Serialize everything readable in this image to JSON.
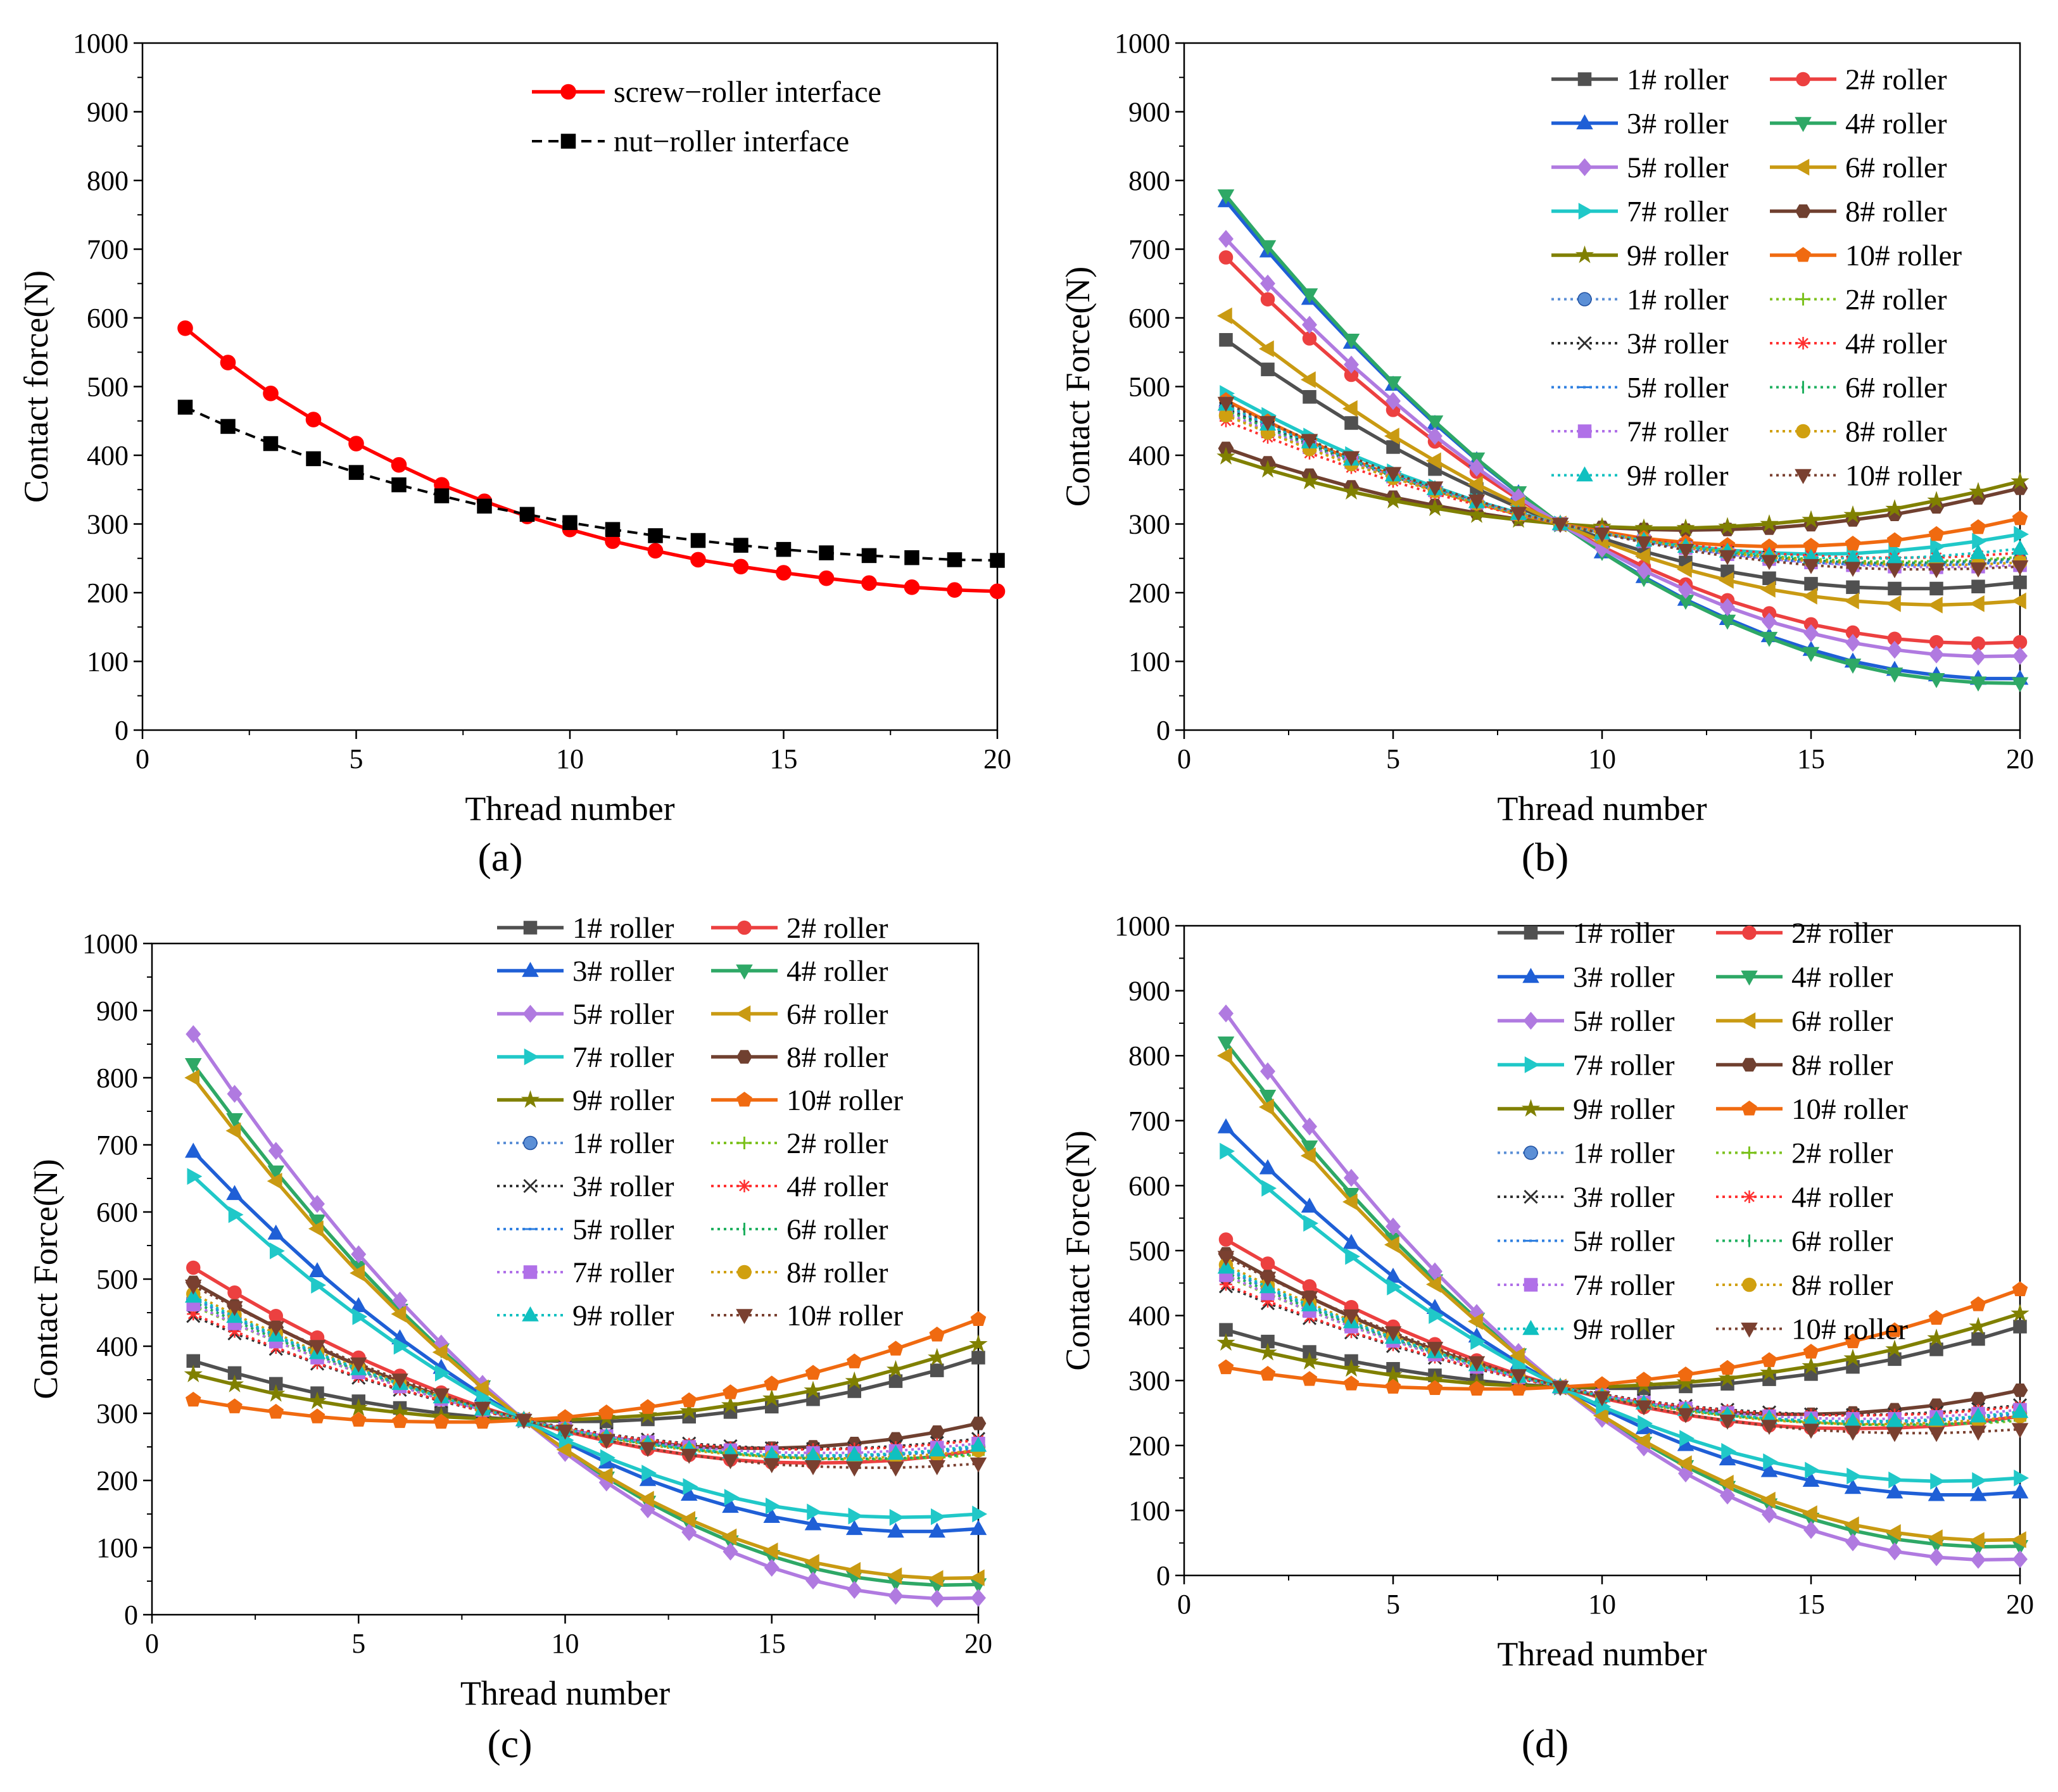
{
  "chart_data": [
    {
      "panel": "a",
      "type": "line",
      "panel_label": "(a)",
      "xlabel": "Thread number",
      "ylabel": "Contact force(N)",
      "xlim": [
        0,
        20
      ],
      "ylim": [
        0,
        1000
      ],
      "xticks": [
        "0",
        "5",
        "10",
        "15",
        "20"
      ],
      "yticks": [
        "0",
        "100",
        "200",
        "300",
        "400",
        "500",
        "600",
        "700",
        "800",
        "900",
        "1000"
      ],
      "legend_position": "top-right",
      "series": [
        {
          "name": "screw−roller interface",
          "color": "#ff0000",
          "marker": "circle",
          "dash": false,
          "values": [
            585,
            535,
            490,
            452,
            417,
            386,
            357,
            333,
            311,
            292,
            275,
            261,
            248,
            238,
            229,
            221,
            214,
            208,
            204,
            202
          ]
        },
        {
          "name": "nut−roller interface",
          "color": "#000000",
          "marker": "square",
          "dash": true,
          "values": [
            470,
            442,
            417,
            395,
            375,
            357,
            341,
            326,
            314,
            302,
            292,
            283,
            276,
            269,
            263,
            258,
            254,
            251,
            248,
            247
          ]
        }
      ]
    },
    {
      "panel": "b",
      "type": "line",
      "panel_label": "(b)",
      "xlabel": "Thread number",
      "ylabel": "Contact Force(N)",
      "xlim": [
        0,
        20
      ],
      "ylim": [
        0,
        1000
      ],
      "xticks": [
        "0",
        "5",
        "10",
        "15",
        "20"
      ],
      "yticks": [
        "0",
        "100",
        "200",
        "300",
        "400",
        "500",
        "600",
        "700",
        "800",
        "900",
        "1000"
      ],
      "legend_position": "top-right",
      "series": [
        {
          "name": "1# roller",
          "color": "#505050",
          "marker": "square",
          "dash": false,
          "start": 568,
          "end": 215,
          "cross": 300,
          "curve": 1.0
        },
        {
          "name": "2# roller",
          "color": "#ec4040",
          "marker": "circle",
          "dash": false,
          "start": 688,
          "end": 128,
          "cross": 300,
          "curve": 1.0
        },
        {
          "name": "3# roller",
          "color": "#1f5fd6",
          "marker": "triangle-up",
          "dash": false,
          "start": 770,
          "end": 75,
          "cross": 300,
          "curve": 1.0
        },
        {
          "name": "4# roller",
          "color": "#2ea866",
          "marker": "triangle-down",
          "dash": false,
          "start": 778,
          "end": 68,
          "cross": 300,
          "curve": 1.0
        },
        {
          "name": "5# roller",
          "color": "#b07ae0",
          "marker": "diamond",
          "dash": false,
          "start": 715,
          "end": 108,
          "cross": 300,
          "curve": 1.0
        },
        {
          "name": "6# roller",
          "color": "#c99a12",
          "marker": "triangle-left",
          "dash": false,
          "start": 603,
          "end": 188,
          "cross": 300,
          "curve": 1.0
        },
        {
          "name": "7# roller",
          "color": "#20c8c8",
          "marker": "triangle-right",
          "dash": false,
          "start": 490,
          "end": 285,
          "cross": 300,
          "curve": 1.0
        },
        {
          "name": "8# roller",
          "color": "#704030",
          "marker": "hexagon",
          "dash": false,
          "start": 410,
          "end": 352,
          "cross": 300,
          "curve": 1.0
        },
        {
          "name": "9# roller",
          "color": "#808000",
          "marker": "star",
          "dash": false,
          "start": 398,
          "end": 362,
          "cross": 300,
          "curve": 1.0
        },
        {
          "name": "10# roller",
          "color": "#f06a10",
          "marker": "pentagon",
          "dash": false,
          "start": 480,
          "end": 308,
          "cross": 300,
          "curve": 1.0
        },
        {
          "name": "1# roller",
          "color": "#5b8fd6",
          "marker": "sphere",
          "dash": true,
          "start": 470,
          "end": 248,
          "cross": 300,
          "curve": 1.0
        },
        {
          "name": "2# roller",
          "color": "#7dc21f",
          "marker": "plus",
          "dash": true,
          "start": 460,
          "end": 252,
          "cross": 300,
          "curve": 1.0
        },
        {
          "name": "3# roller",
          "color": "#303030",
          "marker": "cross",
          "dash": true,
          "start": 468,
          "end": 250,
          "cross": 300,
          "curve": 1.0
        },
        {
          "name": "4# roller",
          "color": "#ff3030",
          "marker": "asterisk",
          "dash": true,
          "start": 450,
          "end": 258,
          "cross": 300,
          "curve": 1.0
        },
        {
          "name": "5# roller",
          "color": "#3080e0",
          "marker": "hline",
          "dash": true,
          "start": 472,
          "end": 246,
          "cross": 300,
          "curve": 1.0
        },
        {
          "name": "6# roller",
          "color": "#20b060",
          "marker": "vline",
          "dash": true,
          "start": 466,
          "end": 250,
          "cross": 300,
          "curve": 1.0
        },
        {
          "name": "7# roller",
          "color": "#b070e8",
          "marker": "square",
          "dash": true,
          "start": 462,
          "end": 240,
          "cross": 300,
          "curve": 1.0
        },
        {
          "name": "8# roller",
          "color": "#d0a010",
          "marker": "circle",
          "dash": true,
          "start": 458,
          "end": 244,
          "cross": 300,
          "curve": 1.0
        },
        {
          "name": "9# roller",
          "color": "#10c0c0",
          "marker": "triangle-up",
          "dash": true,
          "start": 474,
          "end": 264,
          "cross": 300,
          "curve": 1.0
        },
        {
          "name": "10# roller",
          "color": "#7a4030",
          "marker": "triangle-down",
          "dash": true,
          "start": 476,
          "end": 238,
          "cross": 300,
          "curve": 1.0
        }
      ]
    },
    {
      "panel": "c",
      "type": "line",
      "panel_label": "(c)",
      "xlabel": "Thread number",
      "ylabel": "Contact Force(N)",
      "xlim": [
        0,
        20
      ],
      "ylim": [
        0,
        1000
      ],
      "xticks": [
        "0",
        "5",
        "10",
        "15",
        "20"
      ],
      "yticks": [
        "0",
        "100",
        "200",
        "300",
        "400",
        "500",
        "600",
        "700",
        "800",
        "900",
        "1000"
      ],
      "legend_position": "top-right",
      "series": [
        {
          "name": "1# roller",
          "color": "#505050",
          "marker": "square",
          "dash": false,
          "start": 378,
          "end": 383,
          "cross": 290,
          "curve": 1.0
        },
        {
          "name": "2# roller",
          "color": "#ec4040",
          "marker": "circle",
          "dash": false,
          "start": 517,
          "end": 245,
          "cross": 290,
          "curve": 1.0
        },
        {
          "name": "3# roller",
          "color": "#1f5fd6",
          "marker": "triangle-up",
          "dash": false,
          "start": 690,
          "end": 128,
          "cross": 290,
          "curve": 1.0
        },
        {
          "name": "4# roller",
          "color": "#2ea866",
          "marker": "triangle-down",
          "dash": false,
          "start": 820,
          "end": 45,
          "cross": 290,
          "curve": 1.0
        },
        {
          "name": "5# roller",
          "color": "#b07ae0",
          "marker": "diamond",
          "dash": false,
          "start": 865,
          "end": 25,
          "cross": 290,
          "curve": 1.0
        },
        {
          "name": "6# roller",
          "color": "#c99a12",
          "marker": "triangle-left",
          "dash": false,
          "start": 800,
          "end": 55,
          "cross": 290,
          "curve": 1.0
        },
        {
          "name": "7# roller",
          "color": "#20c8c8",
          "marker": "triangle-right",
          "dash": false,
          "start": 653,
          "end": 150,
          "cross": 290,
          "curve": 1.0
        },
        {
          "name": "8# roller",
          "color": "#704030",
          "marker": "hexagon",
          "dash": false,
          "start": 495,
          "end": 285,
          "cross": 290,
          "curve": 1.0
        },
        {
          "name": "9# roller",
          "color": "#808000",
          "marker": "star",
          "dash": false,
          "start": 358,
          "end": 403,
          "cross": 290,
          "curve": 1.0
        },
        {
          "name": "10# roller",
          "color": "#f06a10",
          "marker": "pentagon",
          "dash": false,
          "start": 320,
          "end": 440,
          "cross": 290,
          "curve": 1.0
        },
        {
          "name": "1# roller",
          "color": "#5b8fd6",
          "marker": "sphere",
          "dash": true,
          "start": 470,
          "end": 250,
          "cross": 290,
          "curve": 1.0
        },
        {
          "name": "2# roller",
          "color": "#7dc21f",
          "marker": "plus",
          "dash": true,
          "start": 460,
          "end": 238,
          "cross": 290,
          "curve": 1.0
        },
        {
          "name": "3# roller",
          "color": "#303030",
          "marker": "cross",
          "dash": true,
          "start": 445,
          "end": 262,
          "cross": 290,
          "curve": 1.0
        },
        {
          "name": "4# roller",
          "color": "#ff3030",
          "marker": "asterisk",
          "dash": true,
          "start": 448,
          "end": 260,
          "cross": 290,
          "curve": 1.0
        },
        {
          "name": "5# roller",
          "color": "#3080e0",
          "marker": "hline",
          "dash": true,
          "start": 472,
          "end": 248,
          "cross": 290,
          "curve": 1.0
        },
        {
          "name": "6# roller",
          "color": "#20b060",
          "marker": "vline",
          "dash": true,
          "start": 466,
          "end": 240,
          "cross": 290,
          "curve": 1.0
        },
        {
          "name": "7# roller",
          "color": "#b070e8",
          "marker": "square",
          "dash": true,
          "start": 462,
          "end": 255,
          "cross": 290,
          "curve": 1.0
        },
        {
          "name": "8# roller",
          "color": "#d0a010",
          "marker": "circle",
          "dash": true,
          "start": 478,
          "end": 245,
          "cross": 290,
          "curve": 1.0
        },
        {
          "name": "9# roller",
          "color": "#10c0c0",
          "marker": "triangle-up",
          "dash": true,
          "start": 474,
          "end": 252,
          "cross": 290,
          "curve": 1.0
        },
        {
          "name": "10# roller",
          "color": "#7a4030",
          "marker": "triangle-down",
          "dash": true,
          "start": 490,
          "end": 225,
          "cross": 290,
          "curve": 1.0
        }
      ]
    },
    {
      "panel": "d",
      "type": "line",
      "panel_label": "(d)",
      "xlabel": "Thread number",
      "ylabel": "Contact Force(N)",
      "xlim": [
        0,
        20
      ],
      "ylim": [
        0,
        1000
      ],
      "xticks": [
        "0",
        "5",
        "10",
        "15",
        "20"
      ],
      "yticks": [
        "0",
        "100",
        "200",
        "300",
        "400",
        "500",
        "600",
        "700",
        "800",
        "900",
        "1000"
      ],
      "legend_position": "top-right",
      "series": [
        {
          "name": "1# roller",
          "color": "#505050",
          "marker": "square",
          "dash": false,
          "start": 378,
          "end": 383,
          "cross": 290,
          "curve": 1.0
        },
        {
          "name": "2# roller",
          "color": "#ec4040",
          "marker": "circle",
          "dash": false,
          "start": 517,
          "end": 245,
          "cross": 290,
          "curve": 1.0
        },
        {
          "name": "3# roller",
          "color": "#1f5fd6",
          "marker": "triangle-up",
          "dash": false,
          "start": 690,
          "end": 128,
          "cross": 290,
          "curve": 1.0
        },
        {
          "name": "4# roller",
          "color": "#2ea866",
          "marker": "triangle-down",
          "dash": false,
          "start": 820,
          "end": 45,
          "cross": 290,
          "curve": 1.0
        },
        {
          "name": "5# roller",
          "color": "#b07ae0",
          "marker": "diamond",
          "dash": false,
          "start": 865,
          "end": 25,
          "cross": 290,
          "curve": 1.0
        },
        {
          "name": "6# roller",
          "color": "#c99a12",
          "marker": "triangle-left",
          "dash": false,
          "start": 800,
          "end": 55,
          "cross": 290,
          "curve": 1.0
        },
        {
          "name": "7# roller",
          "color": "#20c8c8",
          "marker": "triangle-right",
          "dash": false,
          "start": 653,
          "end": 150,
          "cross": 290,
          "curve": 1.0
        },
        {
          "name": "8# roller",
          "color": "#704030",
          "marker": "hexagon",
          "dash": false,
          "start": 495,
          "end": 285,
          "cross": 290,
          "curve": 1.0
        },
        {
          "name": "9# roller",
          "color": "#808000",
          "marker": "star",
          "dash": false,
          "start": 358,
          "end": 403,
          "cross": 290,
          "curve": 1.0
        },
        {
          "name": "10# roller",
          "color": "#f06a10",
          "marker": "pentagon",
          "dash": false,
          "start": 320,
          "end": 440,
          "cross": 290,
          "curve": 1.0
        },
        {
          "name": "1# roller",
          "color": "#5b8fd6",
          "marker": "sphere",
          "dash": true,
          "start": 470,
          "end": 250,
          "cross": 290,
          "curve": 1.0
        },
        {
          "name": "2# roller",
          "color": "#7dc21f",
          "marker": "plus",
          "dash": true,
          "start": 460,
          "end": 238,
          "cross": 290,
          "curve": 1.0
        },
        {
          "name": "3# roller",
          "color": "#303030",
          "marker": "cross",
          "dash": true,
          "start": 445,
          "end": 262,
          "cross": 290,
          "curve": 1.0
        },
        {
          "name": "4# roller",
          "color": "#ff3030",
          "marker": "asterisk",
          "dash": true,
          "start": 448,
          "end": 260,
          "cross": 290,
          "curve": 1.0
        },
        {
          "name": "5# roller",
          "color": "#3080e0",
          "marker": "hline",
          "dash": true,
          "start": 472,
          "end": 248,
          "cross": 290,
          "curve": 1.0
        },
        {
          "name": "6# roller",
          "color": "#20b060",
          "marker": "vline",
          "dash": true,
          "start": 466,
          "end": 240,
          "cross": 290,
          "curve": 1.0
        },
        {
          "name": "7# roller",
          "color": "#b070e8",
          "marker": "square",
          "dash": true,
          "start": 462,
          "end": 255,
          "cross": 290,
          "curve": 1.0
        },
        {
          "name": "8# roller",
          "color": "#d0a010",
          "marker": "circle",
          "dash": true,
          "start": 478,
          "end": 245,
          "cross": 290,
          "curve": 1.0
        },
        {
          "name": "9# roller",
          "color": "#10c0c0",
          "marker": "triangle-up",
          "dash": true,
          "start": 474,
          "end": 252,
          "cross": 290,
          "curve": 1.0
        },
        {
          "name": "10# roller",
          "color": "#7a4030",
          "marker": "triangle-down",
          "dash": true,
          "start": 490,
          "end": 225,
          "cross": 290,
          "curve": 1.0
        }
      ]
    }
  ]
}
